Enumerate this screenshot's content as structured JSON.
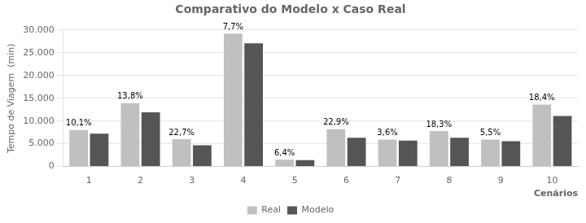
{
  "chart_data": {
    "type": "bar",
    "title": "Comparativo do Modelo x Caso Real",
    "xlabel": "Cenários",
    "ylabel": "Tempo de Viagem  (min)",
    "categories": [
      "1",
      "2",
      "3",
      "4",
      "5",
      "6",
      "7",
      "8",
      "9",
      "10"
    ],
    "series": [
      {
        "name": "Real",
        "color": "#c0c0c0",
        "values": [
          8000,
          13900,
          6000,
          29200,
          1500,
          8200,
          5900,
          7800,
          5900,
          13600
        ]
      },
      {
        "name": "Modelo",
        "color": "#555555",
        "values": [
          7200,
          11900,
          4650,
          27050,
          1400,
          6300,
          5700,
          6300,
          5550,
          11100
        ]
      }
    ],
    "annotations": [
      {
        "category": "1",
        "text": "10,1%"
      },
      {
        "category": "2",
        "text": "13,8%"
      },
      {
        "category": "3",
        "text": "22,7%"
      },
      {
        "category": "4",
        "text": "7,7%"
      },
      {
        "category": "5",
        "text": "6,4%"
      },
      {
        "category": "6",
        "text": "22,9%"
      },
      {
        "category": "7",
        "text": "3,6%"
      },
      {
        "category": "8",
        "text": "18,3%"
      },
      {
        "category": "9",
        "text": "5,5%"
      },
      {
        "category": "10",
        "text": "18,4%"
      }
    ],
    "ylim": [
      0,
      30000
    ],
    "yticks": [
      0,
      {
        "value": 5000,
        "label": "5.000"
      },
      {
        "value": 10000,
        "label": "10.000"
      },
      {
        "value": 15000,
        "label": "15.000"
      },
      {
        "value": 20000,
        "label": "20.000"
      },
      {
        "value": 25000,
        "label": "25.000"
      },
      {
        "value": 30000,
        "label": "30.000"
      }
    ],
    "grid": true,
    "legend": "bottom"
  }
}
